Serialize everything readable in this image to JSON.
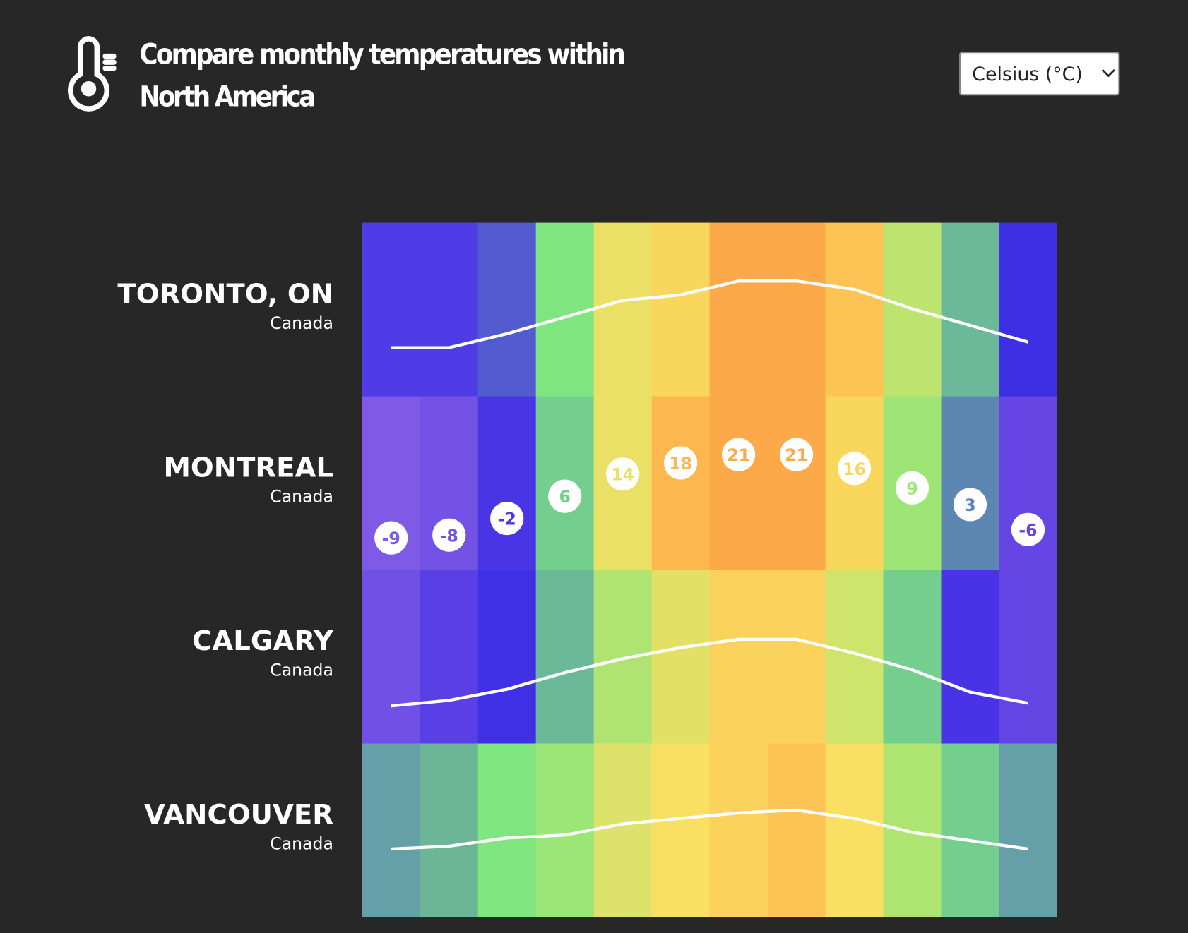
{
  "header": {
    "title_lines": [
      "Compare monthly temperatures within",
      "North America"
    ]
  },
  "unit_select": {
    "label": "Celsius (°C)"
  },
  "rows": [
    {
      "city": "TORONTO, ON",
      "country": "Canada",
      "show_labels": false,
      "values": [
        -3,
        -3,
        2,
        8,
        14,
        16,
        21,
        21,
        18,
        11,
        5,
        -1
      ],
      "colors": [
        "#4f3ce6",
        "#4f3ce6",
        "#525bcf",
        "#7fe67f",
        "#ebe066",
        "#f9d65c",
        "#fca94a",
        "#fca94a",
        "#fcc455",
        "#bde46f",
        "#6cb999",
        "#3c2fe4"
      ]
    },
    {
      "city": "MONTREAL",
      "country": "Canada",
      "show_labels": true,
      "values": [
        -9,
        -8,
        -2,
        6,
        14,
        18,
        21,
        21,
        16,
        9,
        3,
        -6
      ],
      "colors": [
        "#7f5ae6",
        "#7452e6",
        "#4a35e6",
        "#74cf8e",
        "#ebe066",
        "#fcb84e",
        "#fca94a",
        "#fca94a",
        "#f9d65c",
        "#9de676",
        "#5c87b2",
        "#6545e4"
      ]
    },
    {
      "city": "CALGARY",
      "country": "Canada",
      "show_labels": false,
      "values": [
        -7,
        -5,
        -1,
        5,
        10,
        14,
        17,
        17,
        12,
        6,
        -2,
        -6
      ],
      "colors": [
        "#7050e6",
        "#5a3ee6",
        "#3f30e6",
        "#6cb999",
        "#b0e472",
        "#e3e066",
        "#fbd25c",
        "#fbd25c",
        "#cfe46b",
        "#74cf8e",
        "#4a33e6",
        "#6345e4"
      ]
    },
    {
      "city": "VANCOUVER",
      "country": "Canada",
      "show_labels": false,
      "values": [
        4,
        5,
        8,
        9,
        13,
        15,
        17,
        18,
        15,
        10,
        7,
        4
      ],
      "colors": [
        "#65a0a8",
        "#6cb597",
        "#7fe67f",
        "#9ce678",
        "#dde36a",
        "#fae062",
        "#fbd25c",
        "#fcc455",
        "#fae062",
        "#aee472",
        "#74cf8e",
        "#65a0a8"
      ]
    }
  ]
}
